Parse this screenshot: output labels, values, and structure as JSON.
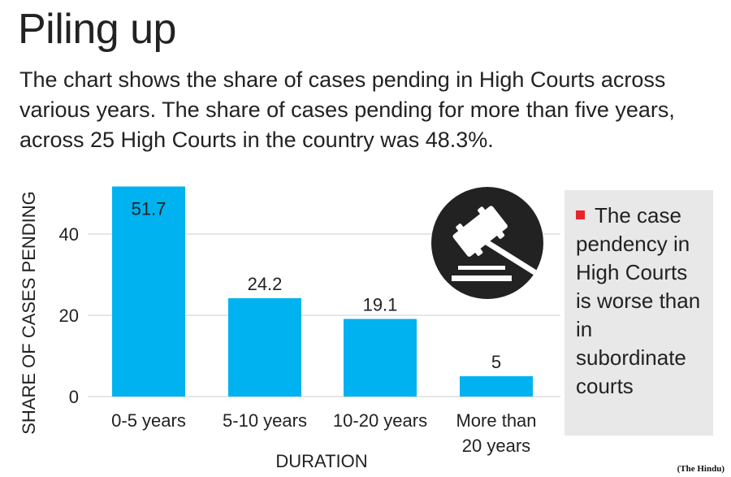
{
  "header": {
    "title": "Piling up",
    "subtitle": "The chart shows the share of cases pending in High Courts across various years. The share of cases pending for more than five years, across 25 High Courts in the country was 48.3%."
  },
  "chart_data": {
    "type": "bar",
    "categories": [
      "0-5 years",
      "5-10 years",
      "10-20 years",
      "More than 20 years"
    ],
    "values": [
      51.7,
      24.2,
      19.1,
      5
    ],
    "value_labels": [
      "51.7",
      "24.2",
      "19.1",
      "5"
    ],
    "xlabel": "DURATION",
    "ylabel": "SHARE OF CASES PENDING",
    "yticks": [
      "0",
      "20",
      "40"
    ],
    "ylim": [
      0,
      52
    ],
    "grid": "horizontal",
    "bar_color": "#00b2ef"
  },
  "note": {
    "text": "The case pendency in High Courts is worse than in subordinate courts",
    "marker_color": "#e8242b"
  },
  "icon": {
    "name": "gavel-icon",
    "color": "#222222"
  },
  "source": "(The Hindu)"
}
